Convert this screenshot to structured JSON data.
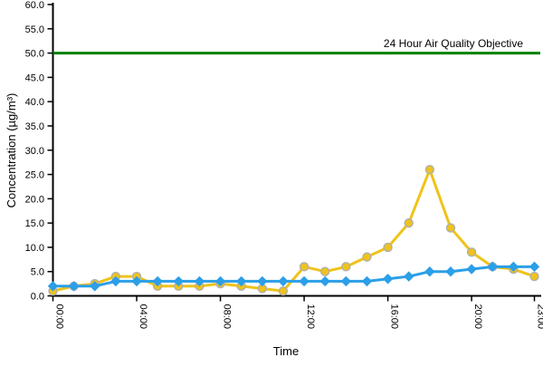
{
  "chart_data": {
    "type": "line",
    "title": "",
    "xlabel": "Time",
    "ylabel": "Concentration (µg/m³)",
    "ylim": [
      0,
      60
    ],
    "ytick_step": 5,
    "ytick_decimals": 1,
    "grid": false,
    "legend": "none",
    "categories": [
      "00:00",
      "01:00",
      "02:00",
      "03:00",
      "04:00",
      "05:00",
      "06:00",
      "07:00",
      "08:00",
      "09:00",
      "10:00",
      "11:00",
      "12:00",
      "13:00",
      "14:00",
      "15:00",
      "16:00",
      "17:00",
      "18:00",
      "19:00",
      "20:00",
      "21:00",
      "22:00",
      "23:00"
    ],
    "x_ticks_shown": [
      "00:00",
      "04:00",
      "08:00",
      "12:00",
      "16:00",
      "20:00",
      "23:00"
    ],
    "series": [
      {
        "name": "series-1-yellow",
        "color": "#EFC319",
        "marker": "circle",
        "marker_stroke": "#B0B0B0",
        "values": [
          1,
          2,
          2.5,
          4,
          4,
          2,
          2,
          2,
          2.5,
          2,
          1.5,
          1,
          6,
          5,
          6,
          8,
          10,
          15,
          26,
          14,
          9,
          6,
          5.5,
          4
        ]
      },
      {
        "name": "series-2-blue",
        "color": "#2B9FE8",
        "marker": "diamond",
        "marker_stroke": "#2B9FE8",
        "values": [
          2,
          2,
          2,
          3,
          3,
          3,
          3,
          3,
          3,
          3,
          3,
          3,
          3,
          3,
          3,
          3,
          3.5,
          4,
          5,
          5,
          5.5,
          6,
          6,
          6
        ]
      }
    ],
    "reference_line": {
      "label": "24 Hour Air Quality Objective",
      "value": 50,
      "color": "#008000"
    },
    "axis_color": "#000000"
  }
}
